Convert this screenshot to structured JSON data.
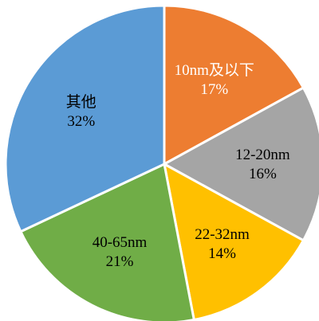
{
  "chart_data": {
    "type": "pie",
    "title": "",
    "start_angle_deg": 0,
    "direction": "clockwise",
    "slices": [
      {
        "label": "10nm及以下",
        "percent_label": "17%",
        "value": 17,
        "color": "#ED7D31",
        "text_color": "#ffffff"
      },
      {
        "label": "12-20nm",
        "percent_label": "16%",
        "value": 16,
        "color": "#A5A5A5",
        "text_color": "#000000"
      },
      {
        "label": "22-32nm",
        "percent_label": "14%",
        "value": 14,
        "color": "#FFC000",
        "text_color": "#000000"
      },
      {
        "label": "40-65nm",
        "percent_label": "21%",
        "value": 21,
        "color": "#70AD47",
        "text_color": "#000000"
      },
      {
        "label": "其他",
        "percent_label": "32%",
        "value": 32,
        "color": "#5B9BD5",
        "text_color": "#000000"
      }
    ]
  }
}
